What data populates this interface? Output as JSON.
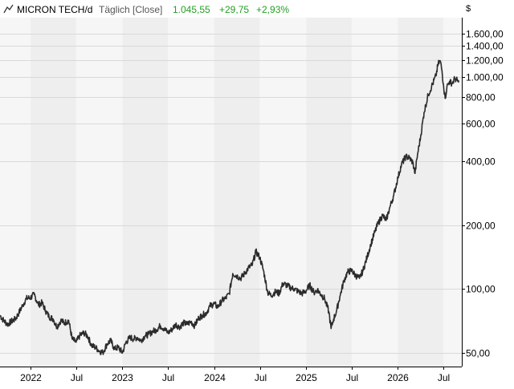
{
  "header": {
    "icon": "line-chart-icon",
    "instrument": "MICRON TECH/d",
    "mode": "Täglich [Close]",
    "last": "1.045,55",
    "change": "+29,75",
    "change_pct": "+2,93%"
  },
  "colors": {
    "positive": "#22a022",
    "line": "#2b2b2b",
    "band_dark": "#eeeeee",
    "band_light": "#f6f6f6",
    "grid": "#d9d9d9",
    "axis": "#000000"
  },
  "chart_data": {
    "type": "line",
    "title": "MICRON TECH/d",
    "subtitle": "Täglich [Close]",
    "ylabel": "$",
    "yscale": "log",
    "ylim": [
      43,
      1900
    ],
    "xlim": [
      "2021-09-01",
      "2026-09-12"
    ],
    "grid": true,
    "y_ticks": [
      {
        "value": 50,
        "label": "50,00"
      },
      {
        "value": 100,
        "label": "100,00"
      },
      {
        "value": 200,
        "label": "200,00"
      },
      {
        "value": 400,
        "label": "400,00"
      },
      {
        "value": 600,
        "label": "600,00"
      },
      {
        "value": 800,
        "label": "800,00"
      },
      {
        "value": 1000,
        "label": "1.000,00"
      },
      {
        "value": 1200,
        "label": "1.200,00"
      },
      {
        "value": 1400,
        "label": "1.400,00"
      },
      {
        "value": 1600,
        "label": "1.600,00"
      }
    ],
    "x_ticks": [
      {
        "date": "2022-01-01",
        "label": "2022"
      },
      {
        "date": "2022-07-01",
        "label": "Jul"
      },
      {
        "date": "2023-01-01",
        "label": "2023"
      },
      {
        "date": "2023-07-01",
        "label": "Jul"
      },
      {
        "date": "2024-01-01",
        "label": "2024"
      },
      {
        "date": "2024-07-01",
        "label": "Jul"
      },
      {
        "date": "2025-01-01",
        "label": "2025"
      },
      {
        "date": "2025-07-01",
        "label": "Jul"
      },
      {
        "date": "2026-01-01",
        "label": "2026"
      },
      {
        "date": "2026-07-01",
        "label": "Jul"
      }
    ],
    "series": [
      {
        "name": "MICRON TECH",
        "points": [
          [
            "2021-09-01",
            75
          ],
          [
            "2021-09-15",
            71
          ],
          [
            "2021-10-01",
            68
          ],
          [
            "2021-10-15",
            70
          ],
          [
            "2021-11-01",
            72
          ],
          [
            "2021-11-15",
            77
          ],
          [
            "2021-12-01",
            84
          ],
          [
            "2021-12-15",
            90
          ],
          [
            "2022-01-01",
            91
          ],
          [
            "2022-01-15",
            94
          ],
          [
            "2022-02-01",
            84
          ],
          [
            "2022-02-15",
            86
          ],
          [
            "2022-03-01",
            79
          ],
          [
            "2022-03-15",
            74
          ],
          [
            "2022-04-01",
            72
          ],
          [
            "2022-04-15",
            66
          ],
          [
            "2022-05-01",
            71
          ],
          [
            "2022-05-15",
            69
          ],
          [
            "2022-06-01",
            71
          ],
          [
            "2022-06-15",
            58
          ],
          [
            "2022-07-01",
            56
          ],
          [
            "2022-07-15",
            60
          ],
          [
            "2022-08-01",
            62
          ],
          [
            "2022-08-15",
            60
          ],
          [
            "2022-09-01",
            54
          ],
          [
            "2022-09-15",
            53
          ],
          [
            "2022-10-01",
            51
          ],
          [
            "2022-10-15",
            50
          ],
          [
            "2022-11-01",
            55
          ],
          [
            "2022-11-15",
            57
          ],
          [
            "2022-12-01",
            52
          ],
          [
            "2022-12-15",
            53
          ],
          [
            "2023-01-01",
            50
          ],
          [
            "2023-01-15",
            56
          ],
          [
            "2023-02-01",
            59
          ],
          [
            "2023-02-15",
            58
          ],
          [
            "2023-03-01",
            59
          ],
          [
            "2023-03-15",
            57
          ],
          [
            "2023-04-01",
            60
          ],
          [
            "2023-04-15",
            61
          ],
          [
            "2023-05-01",
            63
          ],
          [
            "2023-05-15",
            64
          ],
          [
            "2023-06-01",
            67
          ],
          [
            "2023-06-15",
            65
          ],
          [
            "2023-07-01",
            62
          ],
          [
            "2023-07-15",
            64
          ],
          [
            "2023-08-01",
            68
          ],
          [
            "2023-08-15",
            66
          ],
          [
            "2023-09-01",
            69
          ],
          [
            "2023-09-15",
            68
          ],
          [
            "2023-10-01",
            70
          ],
          [
            "2023-10-15",
            67
          ],
          [
            "2023-11-01",
            73
          ],
          [
            "2023-11-15",
            75
          ],
          [
            "2023-12-01",
            77
          ],
          [
            "2023-12-15",
            83
          ],
          [
            "2024-01-01",
            85
          ],
          [
            "2024-01-15",
            82
          ],
          [
            "2024-02-01",
            88
          ],
          [
            "2024-02-15",
            90
          ],
          [
            "2024-03-01",
            95
          ],
          [
            "2024-03-15",
            118
          ],
          [
            "2024-04-01",
            115
          ],
          [
            "2024-04-15",
            112
          ],
          [
            "2024-05-01",
            118
          ],
          [
            "2024-05-15",
            125
          ],
          [
            "2024-06-01",
            130
          ],
          [
            "2024-06-15",
            150
          ],
          [
            "2024-07-01",
            140
          ],
          [
            "2024-07-15",
            122
          ],
          [
            "2024-08-01",
            96
          ],
          [
            "2024-08-15",
            93
          ],
          [
            "2024-09-01",
            97
          ],
          [
            "2024-09-15",
            95
          ],
          [
            "2024-10-01",
            106
          ],
          [
            "2024-10-15",
            104
          ],
          [
            "2024-11-01",
            101
          ],
          [
            "2024-11-15",
            100
          ],
          [
            "2024-12-01",
            97
          ],
          [
            "2024-12-15",
            95
          ],
          [
            "2025-01-01",
            98
          ],
          [
            "2025-01-15",
            104
          ],
          [
            "2025-02-01",
            96
          ],
          [
            "2025-02-15",
            99
          ],
          [
            "2025-03-01",
            94
          ],
          [
            "2025-03-15",
            90
          ],
          [
            "2025-04-01",
            78
          ],
          [
            "2025-04-10",
            65
          ],
          [
            "2025-04-20",
            72
          ],
          [
            "2025-05-01",
            78
          ],
          [
            "2025-05-15",
            92
          ],
          [
            "2025-06-01",
            110
          ],
          [
            "2025-06-15",
            120
          ],
          [
            "2025-07-01",
            122
          ],
          [
            "2025-07-15",
            116
          ],
          [
            "2025-08-01",
            112
          ],
          [
            "2025-08-15",
            122
          ],
          [
            "2025-09-01",
            142
          ],
          [
            "2025-09-15",
            162
          ],
          [
            "2025-10-01",
            185
          ],
          [
            "2025-10-15",
            205
          ],
          [
            "2025-11-01",
            222
          ],
          [
            "2025-11-15",
            210
          ],
          [
            "2025-12-01",
            245
          ],
          [
            "2025-12-15",
            275
          ],
          [
            "2026-01-01",
            335
          ],
          [
            "2026-01-15",
            385
          ],
          [
            "2026-02-01",
            420
          ],
          [
            "2026-02-15",
            415
          ],
          [
            "2026-03-01",
            395
          ],
          [
            "2026-03-10",
            350
          ],
          [
            "2026-03-20",
            430
          ],
          [
            "2026-04-01",
            520
          ],
          [
            "2026-04-15",
            680
          ],
          [
            "2026-05-01",
            820
          ],
          [
            "2026-05-15",
            900
          ],
          [
            "2026-06-01",
            1010
          ],
          [
            "2026-06-10",
            1150
          ],
          [
            "2026-06-18",
            1190
          ],
          [
            "2026-06-25",
            1070
          ],
          [
            "2026-07-01",
            920
          ],
          [
            "2026-07-08",
            790
          ],
          [
            "2026-07-15",
            900
          ],
          [
            "2026-07-25",
            950
          ],
          [
            "2026-08-05",
            930
          ],
          [
            "2026-08-15",
            980
          ],
          [
            "2026-08-25",
            960
          ],
          [
            "2026-08-31",
            940
          ]
        ]
      }
    ]
  }
}
